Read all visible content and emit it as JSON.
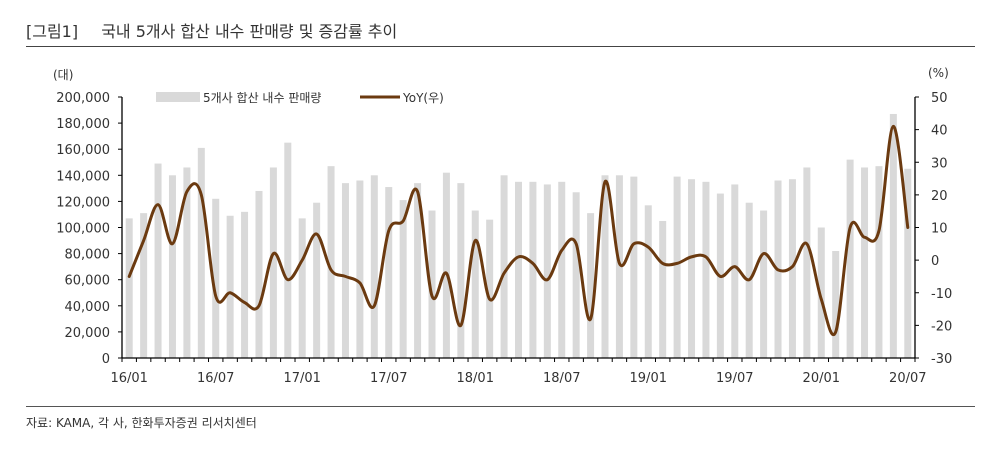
{
  "header": {
    "figure_label": "[그림1]",
    "title": "국내 5개사 합산 내수 판매량 및 증감률 추이"
  },
  "footer": {
    "source": "자료: KAMA, 각 사, 한화투자증권 리서치센터"
  },
  "colors": {
    "bar": "#d9d9d9",
    "line": "#6b3a10",
    "axis": "#000000"
  },
  "chart_data": {
    "type": "bar+line",
    "title": "국내 5개사 합산 내수 판매량 및 증감률 추이",
    "ylabel_left": "(대)",
    "ylabel_right": "(%)",
    "ylim_left": [
      0,
      200000
    ],
    "ylim_right": [
      -30,
      50
    ],
    "yticks_left": [
      "200,000",
      "180,000",
      "160,000",
      "140,000",
      "120,000",
      "100,000",
      "80,000",
      "60,000",
      "40,000",
      "20,000",
      "0"
    ],
    "yticks_right": [
      "50",
      "40",
      "30",
      "20",
      "10",
      "0",
      "-10",
      "-20",
      "-30"
    ],
    "xtick_labels": [
      "16/01",
      "16/07",
      "17/01",
      "17/07",
      "18/01",
      "18/07",
      "19/01",
      "19/07",
      "20/01",
      "20/07"
    ],
    "legend": [
      "5개사 합산 내수 판매량",
      "YoY(우)"
    ],
    "grid": false,
    "categories": [
      "16/01",
      "16/02",
      "16/03",
      "16/04",
      "16/05",
      "16/06",
      "16/07",
      "16/08",
      "16/09",
      "16/10",
      "16/11",
      "16/12",
      "17/01",
      "17/02",
      "17/03",
      "17/04",
      "17/05",
      "17/06",
      "17/07",
      "17/08",
      "17/09",
      "17/10",
      "17/11",
      "17/12",
      "18/01",
      "18/02",
      "18/03",
      "18/04",
      "18/05",
      "18/06",
      "18/07",
      "18/08",
      "18/09",
      "18/10",
      "18/11",
      "18/12",
      "19/01",
      "19/02",
      "19/03",
      "19/04",
      "19/05",
      "19/06",
      "19/07",
      "19/08",
      "19/09",
      "19/10",
      "19/11",
      "19/12",
      "20/01",
      "20/02",
      "20/03",
      "20/04",
      "20/05",
      "20/06",
      "20/07"
    ],
    "series": [
      {
        "name": "5개사 합산 내수 판매량",
        "type": "bar",
        "axis": "left",
        "values": [
          107000,
          111000,
          149000,
          140000,
          146000,
          161000,
          122000,
          109000,
          112000,
          128000,
          146000,
          165000,
          107000,
          119000,
          147000,
          134000,
          136000,
          140000,
          131000,
          121000,
          134000,
          113000,
          142000,
          134000,
          113000,
          106000,
          140000,
          135000,
          135000,
          133000,
          135000,
          127000,
          111000,
          140000,
          140000,
          139000,
          117000,
          105000,
          139000,
          137000,
          135000,
          126000,
          133000,
          119000,
          113000,
          136000,
          137000,
          146000,
          100000,
          82000,
          152000,
          146000,
          147000,
          187000,
          145000
        ]
      },
      {
        "name": "YoY(우)",
        "type": "line",
        "axis": "right",
        "values": [
          -5,
          6,
          17,
          5,
          21,
          20,
          -11,
          -10,
          -13,
          -14,
          2,
          -6,
          0,
          8,
          -3,
          -5,
          -7,
          -14,
          9,
          12,
          21,
          -11,
          -4,
          -20,
          6,
          -12,
          -4,
          1,
          -1,
          -6,
          3,
          5,
          -18,
          24,
          -1,
          5,
          4,
          -1,
          -1,
          1,
          1,
          -5,
          -2,
          -6,
          2,
          -3,
          -2,
          5,
          -12,
          -22,
          10,
          7,
          9,
          41,
          10
        ]
      }
    ]
  }
}
